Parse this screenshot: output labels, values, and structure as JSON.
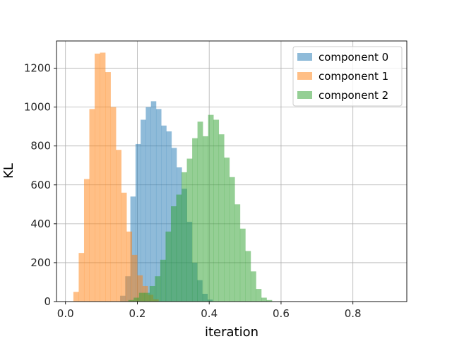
{
  "chart_data": {
    "type": "bar",
    "subtype": "overlapping-histogram",
    "xlabel": "iteration",
    "ylabel": "KL",
    "xlim": [
      -0.025,
      0.95
    ],
    "ylim": [
      0,
      1340
    ],
    "xticks": [
      0.0,
      0.2,
      0.4,
      0.6,
      0.8
    ],
    "xtick_labels": [
      "0.0",
      "0.2",
      "0.4",
      "0.6",
      "0.8"
    ],
    "yticks": [
      0,
      200,
      400,
      600,
      800,
      1000,
      1200
    ],
    "ytick_labels": [
      "0",
      "200",
      "400",
      "600",
      "800",
      "1000",
      "1200"
    ],
    "grid": true,
    "legend_position": "top-right",
    "series": [
      {
        "name": "component 0",
        "color": "#1f77b4",
        "alpha": 0.5,
        "bin_start": 0.152,
        "bin_width": 0.0143,
        "values": [
          30,
          130,
          540,
          810,
          935,
          1000,
          1030,
          990,
          905,
          875,
          790,
          690,
          580,
          410,
          200,
          110,
          40,
          10
        ]
      },
      {
        "name": "component 1",
        "color": "#ff7f0e",
        "alpha": 0.5,
        "bin_start": 0.022,
        "bin_width": 0.0148,
        "values": [
          50,
          250,
          630,
          990,
          1275,
          1280,
          1180,
          1000,
          780,
          560,
          360,
          240,
          135,
          80,
          35,
          12
        ]
      },
      {
        "name": "component 2",
        "color": "#2ca02c",
        "alpha": 0.5,
        "bin_start": 0.175,
        "bin_width": 0.0148,
        "values": [
          8,
          20,
          45,
          45,
          80,
          130,
          215,
          360,
          490,
          550,
          665,
          735,
          840,
          925,
          850,
          960,
          935,
          860,
          740,
          640,
          500,
          375,
          260,
          155,
          65,
          20,
          8
        ]
      }
    ]
  }
}
